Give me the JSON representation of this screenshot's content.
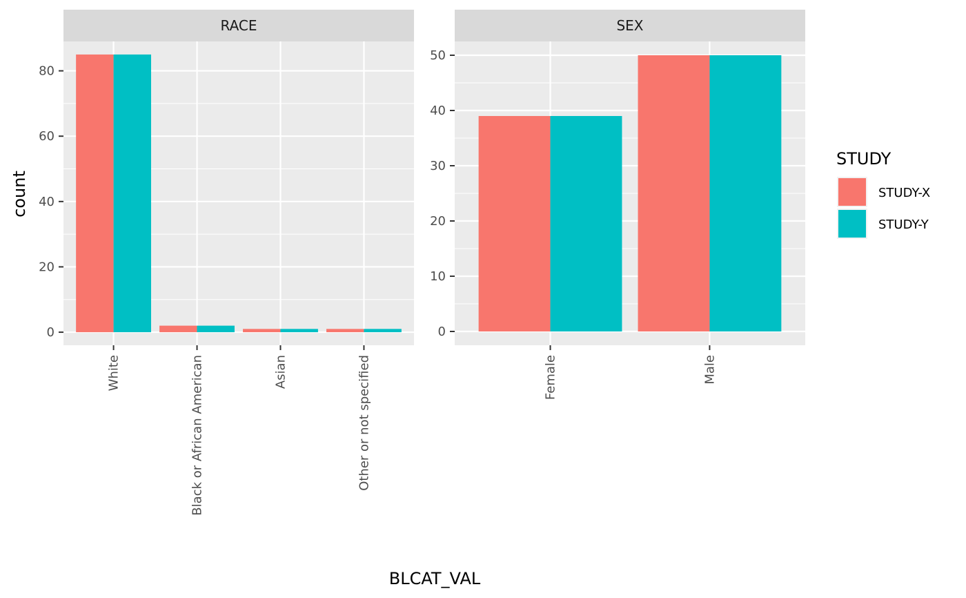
{
  "chart_data": {
    "type": "bar",
    "xlabel": "BLCAT_VAL",
    "ylabel": "count",
    "legend": {
      "title": "STUDY",
      "position": "right"
    },
    "colors": {
      "STUDY-X": "#F8766D",
      "STUDY-Y": "#00BFC4",
      "panel_bg": "#EBEBEB",
      "strip_bg": "#D9D9D9",
      "grid": "#FFFFFF"
    },
    "grid": true,
    "panels": [
      {
        "title": "RACE",
        "categories": [
          "White",
          "Black or African American",
          "Asian",
          "Other or not specified"
        ],
        "ylim": [
          -4,
          89
        ],
        "yticks": [
          0,
          20,
          40,
          60,
          80
        ],
        "series": [
          {
            "name": "STUDY-X",
            "values": [
              85,
              2,
              1,
              1
            ]
          },
          {
            "name": "STUDY-Y",
            "values": [
              85,
              2,
              1,
              1
            ]
          }
        ]
      },
      {
        "title": "SEX",
        "categories": [
          "Female",
          "Male"
        ],
        "ylim": [
          -2.5,
          52.5
        ],
        "yticks": [
          0,
          10,
          20,
          30,
          40,
          50
        ],
        "series": [
          {
            "name": "STUDY-X",
            "values": [
              39,
              50
            ]
          },
          {
            "name": "STUDY-Y",
            "values": [
              39,
              50
            ]
          }
        ]
      }
    ]
  }
}
